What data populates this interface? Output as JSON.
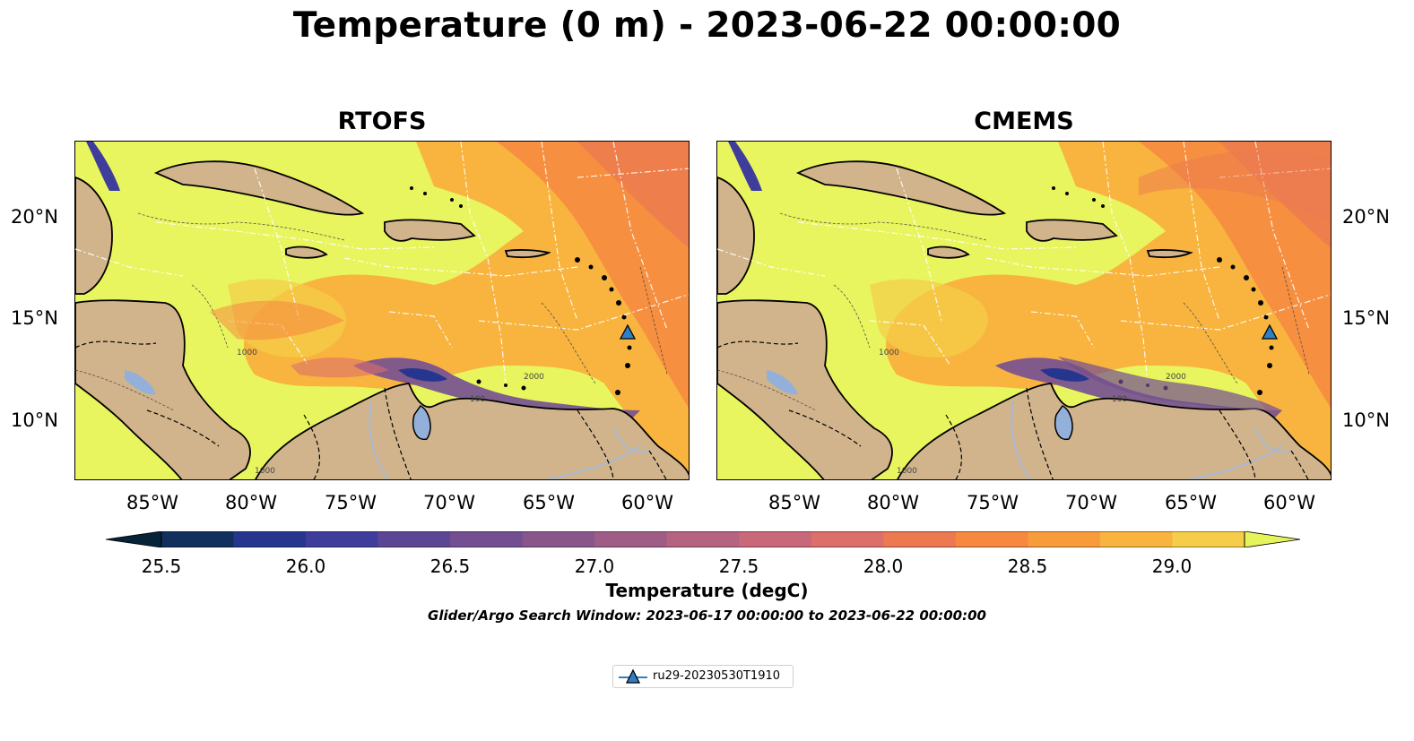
{
  "title": "Temperature (0 m) - 2023-06-22 00:00:00",
  "panels": [
    {
      "title": "RTOFS"
    },
    {
      "title": "CMEMS"
    }
  ],
  "lon_ticks": [
    "85°W",
    "80°W",
    "75°W",
    "70°W",
    "65°W",
    "60°W"
  ],
  "lat_ticks": [
    "20°N",
    "15°N",
    "10°N"
  ],
  "contour_labels": [
    "100",
    "1000",
    "2000"
  ],
  "colorbar": {
    "title": "Temperature (degC)",
    "tick_labels": [
      "25.5",
      "26.0",
      "26.5",
      "27.0",
      "27.5",
      "28.0",
      "28.5",
      "29.0"
    ],
    "colors": [
      "#062338",
      "#12305e",
      "#26368f",
      "#3f3d9b",
      "#5b4696",
      "#734f92",
      "#89568c",
      "#9f5c86",
      "#b56380",
      "#c96878",
      "#dc6f6a",
      "#ec7950",
      "#f6883f",
      "#f89c3b",
      "#f8b43e",
      "#f5cd48",
      "#e6f45c"
    ]
  },
  "subtitle": "Glider/Argo Search Window: 2023-06-17 00:00:00 to 2023-06-22 00:00:00",
  "legend": {
    "label": "ru29-20230530T1910",
    "marker_color": "#2e7fc4"
  },
  "map_colors": {
    "land": "#d1b48c",
    "lake": "#92b0d9",
    "ocean_warm": "#e8f55e"
  }
}
